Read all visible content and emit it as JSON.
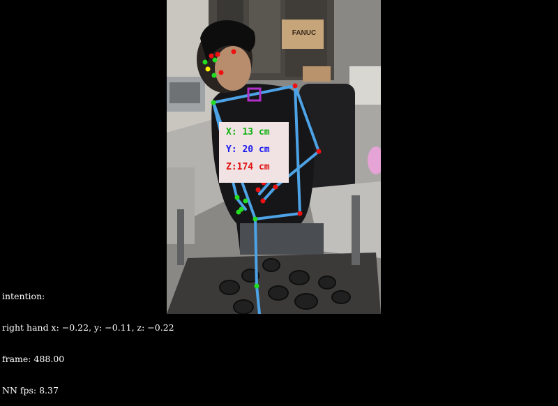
{
  "coordinates": {
    "x_text": "X: 13 cm",
    "y_text": "Y: 20 cm",
    "z_text": "Z:174 cm",
    "x_color": "#10b010",
    "y_color": "#1a1aee",
    "z_color": "#e01010"
  },
  "status": {
    "intention_label": "intention:",
    "right_hand_text": "right hand x: −0.22, y: −0.11, z: −0.22",
    "frame_text": "frame: 488.00",
    "fps_text": "NN fps: 8.37"
  },
  "scene_text": {
    "box_label": "FANUC"
  },
  "colors": {
    "skeleton_line": "#4da3e6",
    "joint_green": "#22dd22",
    "joint_red": "#ee1111",
    "joint_yellow": "#ffee00",
    "neck_marker": "#b030c8",
    "background": "#000000"
  }
}
